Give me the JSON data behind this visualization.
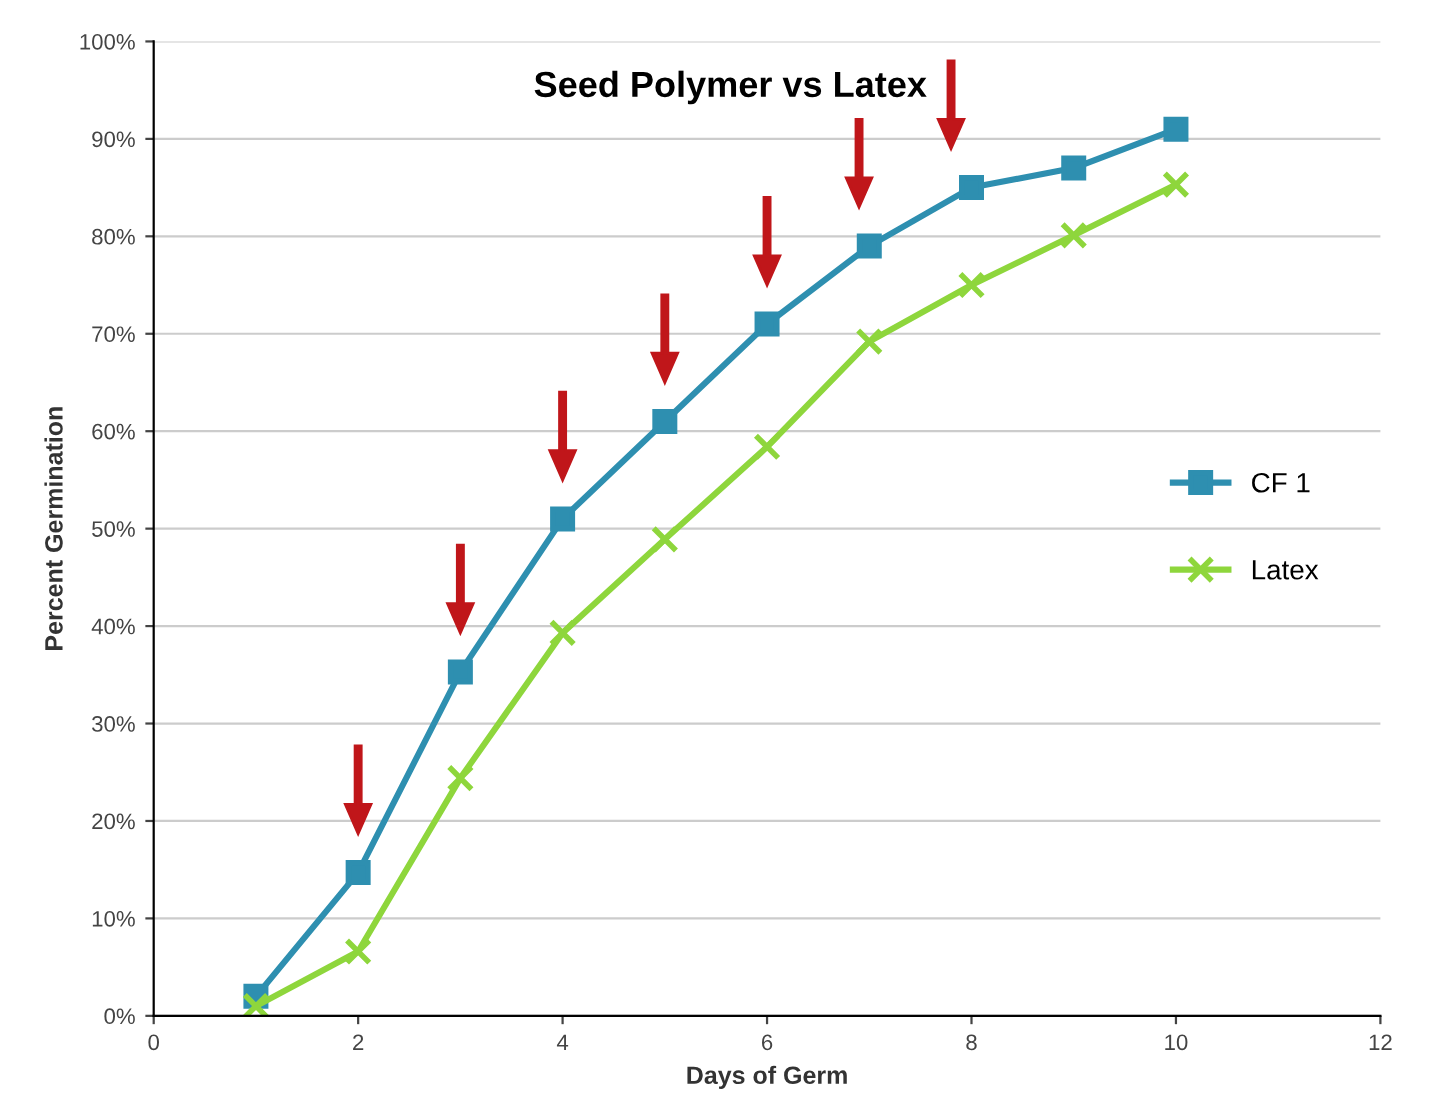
{
  "chart_data": {
    "type": "line",
    "title": "Seed Polymer vs Latex",
    "xlabel": "Days of Germ",
    "ylabel": "Percent Germination",
    "x": [
      1,
      2,
      3,
      4,
      5,
      6,
      7,
      8,
      9,
      10
    ],
    "series": [
      {
        "name": "CF 1",
        "color": "#2e8fb0",
        "marker": "square",
        "values": [
          2,
          14.7,
          35.3,
          51,
          61,
          71,
          79,
          85,
          87,
          91
        ]
      },
      {
        "name": "Latex",
        "color": "#8ed63c",
        "marker": "cross",
        "values": [
          1,
          6.6,
          24.4,
          39.3,
          48.9,
          58.4,
          69.2,
          75,
          80.1,
          85.3
        ]
      }
    ],
    "xlim": [
      0,
      12
    ],
    "xticks": [
      0,
      2,
      4,
      6,
      8,
      10,
      12
    ],
    "ylim": [
      0,
      100
    ],
    "yticks": [
      {
        "value": 0,
        "label": "0%"
      },
      {
        "value": 10,
        "label": "10%"
      },
      {
        "value": 20,
        "label": "20%"
      },
      {
        "value": 30,
        "label": "30%"
      },
      {
        "value": 40,
        "label": "40%"
      },
      {
        "value": 50,
        "label": "50%"
      },
      {
        "value": 60,
        "label": "60%"
      },
      {
        "value": 70,
        "label": "70%"
      },
      {
        "value": 80,
        "label": "80%"
      },
      {
        "value": 90,
        "label": "90%"
      },
      {
        "value": 100,
        "label": "100%"
      }
    ],
    "grid": "y",
    "legend": "right",
    "line_style": "solid"
  }
}
